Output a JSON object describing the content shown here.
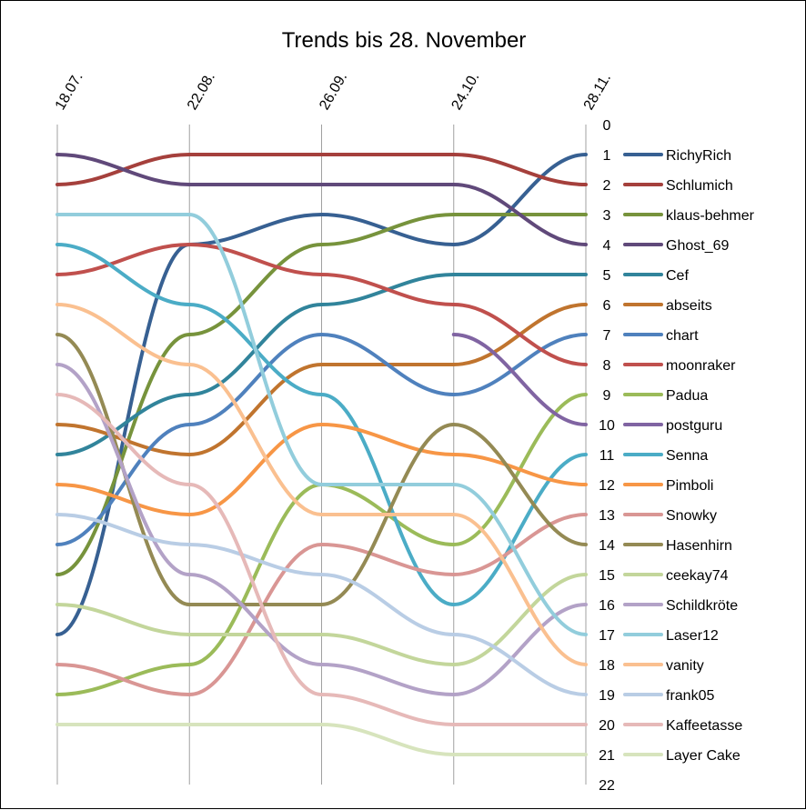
{
  "chart_data": {
    "type": "line",
    "title": "Trends bis 28. November",
    "categories": [
      "18.07.",
      "22.08.",
      "26.09.",
      "24.10.",
      "28.11."
    ],
    "y_ticks": [
      "0",
      "1",
      "2",
      "3",
      "4",
      "5",
      "6",
      "7",
      "8",
      "9",
      "10",
      "11",
      "12",
      "13",
      "14",
      "15",
      "16",
      "17",
      "18",
      "19",
      "20",
      "21",
      "22"
    ],
    "ylim": [
      0,
      22
    ],
    "y_inverted": true,
    "grid": "vertical",
    "legend_position": "right",
    "series": [
      {
        "name": "RichyRich",
        "color": "#376092",
        "values": [
          17,
          4,
          3,
          4,
          1
        ]
      },
      {
        "name": "Schlumich",
        "color": "#A5403C",
        "values": [
          2,
          1,
          1,
          1,
          2
        ]
      },
      {
        "name": "klaus-behmer",
        "color": "#77933C",
        "values": [
          15,
          7,
          4,
          3,
          3
        ]
      },
      {
        "name": "Ghost_69",
        "color": "#60497A",
        "values": [
          1,
          2,
          2,
          2,
          4
        ]
      },
      {
        "name": "Cef",
        "color": "#31849B",
        "values": [
          11,
          9,
          6,
          5,
          5
        ]
      },
      {
        "name": "abseits",
        "color": "#C0742E",
        "values": [
          10,
          11,
          8,
          8,
          6
        ]
      },
      {
        "name": "chart",
        "color": "#4F81BD",
        "values": [
          14,
          10,
          7,
          9,
          7
        ]
      },
      {
        "name": "moonraker",
        "color": "#C0504D",
        "values": [
          5,
          4,
          5,
          6,
          8
        ]
      },
      {
        "name": "Padua",
        "color": "#9BBB59",
        "values": [
          19,
          18,
          12,
          14,
          9
        ]
      },
      {
        "name": "postguru",
        "color": "#8064A2",
        "values": [
          null,
          null,
          null,
          7,
          10
        ]
      },
      {
        "name": "Senna",
        "color": "#4BACC6",
        "values": [
          4,
          6,
          9,
          16,
          11
        ]
      },
      {
        "name": "Pimboli",
        "color": "#F79646",
        "values": [
          12,
          13,
          10,
          11,
          12
        ]
      },
      {
        "name": "Snowky",
        "color": "#D99694",
        "values": [
          18,
          19,
          14,
          15,
          13
        ]
      },
      {
        "name": "Hasenhirn",
        "color": "#948A54",
        "values": [
          7,
          16,
          16,
          10,
          14
        ]
      },
      {
        "name": "ceekay74",
        "color": "#C3D69B",
        "values": [
          16,
          17,
          17,
          18,
          15
        ]
      },
      {
        "name": "Schildkröte",
        "color": "#B3A2C7",
        "values": [
          8,
          15,
          18,
          19,
          16
        ]
      },
      {
        "name": "Laser12",
        "color": "#92CDDC",
        "values": [
          3,
          3,
          12,
          12,
          17
        ]
      },
      {
        "name": "vanity",
        "color": "#FAC090",
        "values": [
          6,
          8,
          13,
          13,
          18
        ]
      },
      {
        "name": "frank05",
        "color": "#B9CDE5",
        "values": [
          13,
          14,
          15,
          17,
          19
        ]
      },
      {
        "name": "Kaffeetasse",
        "color": "#E6B9B8",
        "values": [
          9,
          12,
          19,
          20,
          20
        ]
      },
      {
        "name": "Layer Cake",
        "color": "#D7E4BD",
        "values": [
          20,
          20,
          20,
          21,
          21
        ]
      }
    ]
  }
}
